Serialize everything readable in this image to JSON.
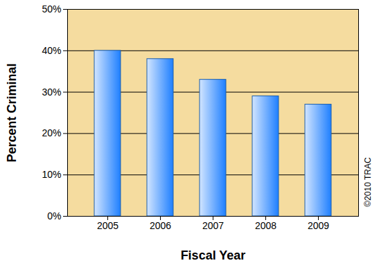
{
  "chart_data": {
    "type": "bar",
    "x_label": "Fiscal Year",
    "y_label": "Percent Criminal",
    "annotations": [
      "©2010 TRAC"
    ],
    "categories": [
      "2005",
      "2006",
      "2007",
      "2008",
      "2009"
    ],
    "values": [
      40,
      38,
      33,
      29,
      27
    ],
    "color": "#1e7fff",
    "ylim": [
      0,
      50
    ],
    "yticks": [
      {
        "value": 0,
        "label": "0%"
      },
      {
        "value": 10,
        "label": "10%"
      },
      {
        "value": 20,
        "label": "20%"
      },
      {
        "value": 30,
        "label": "30%"
      },
      {
        "value": 40,
        "label": "40%"
      },
      {
        "value": 50,
        "label": "50%"
      }
    ],
    "grid": true
  }
}
